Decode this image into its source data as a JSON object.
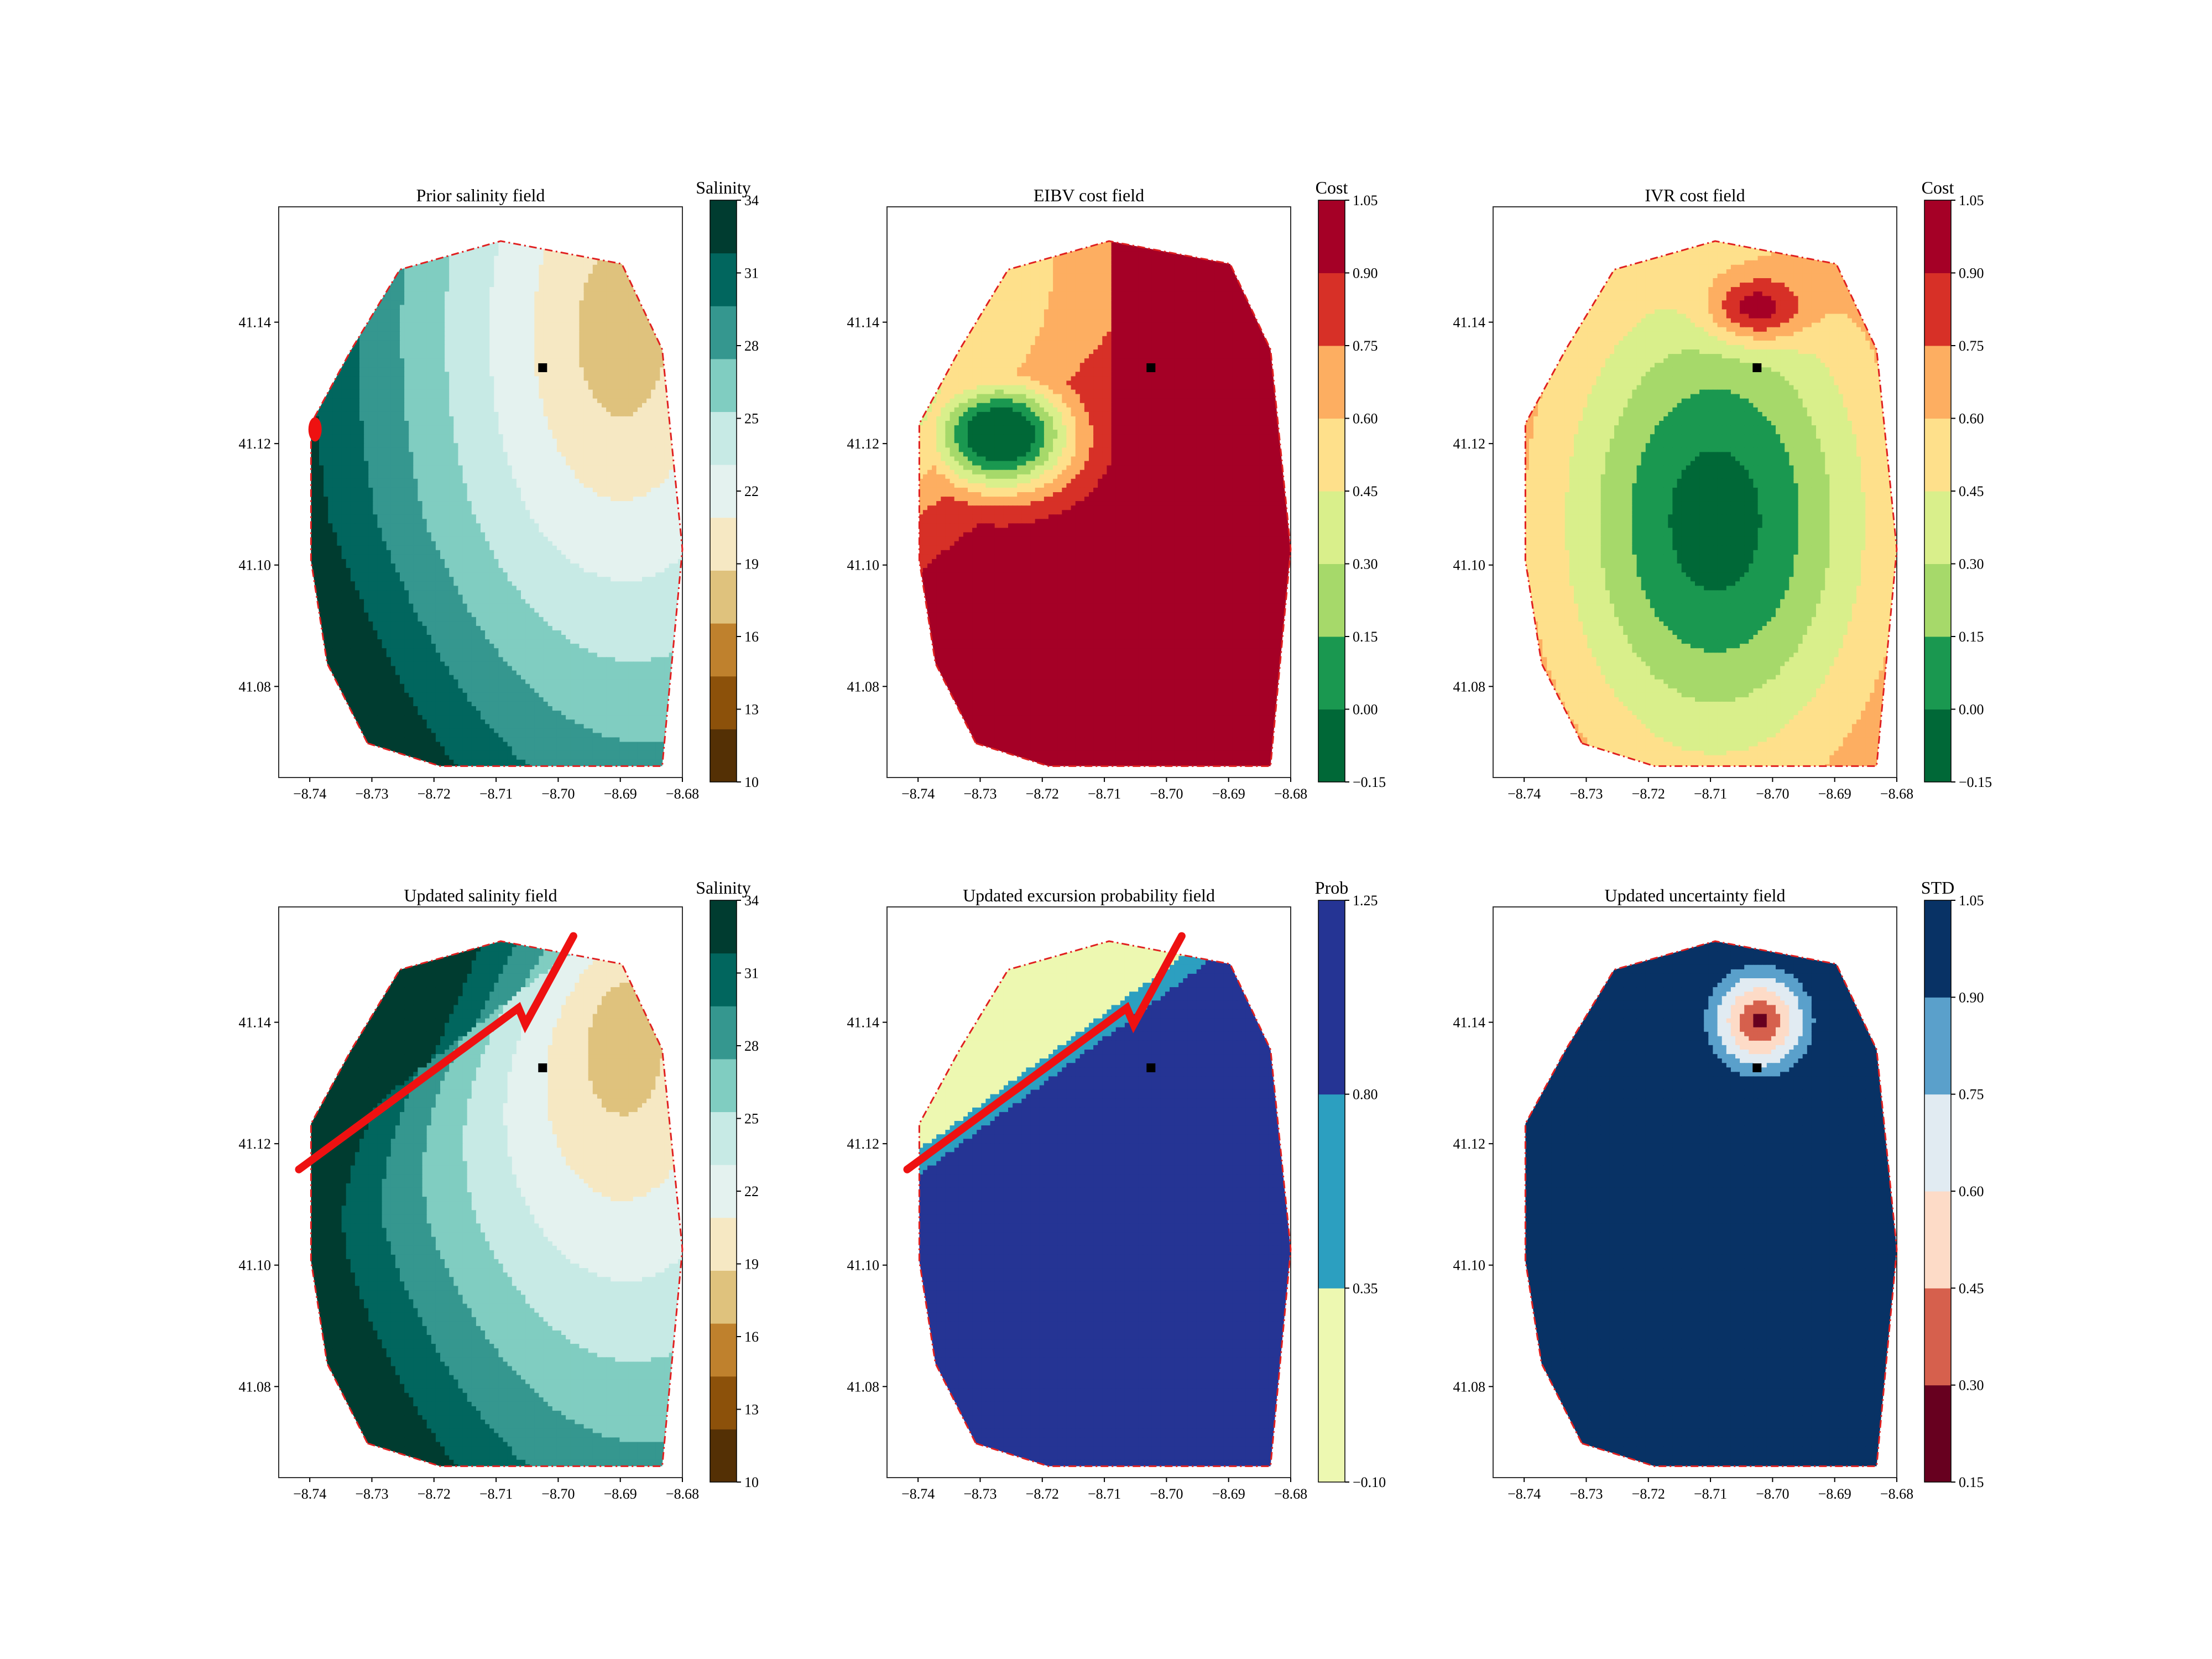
{
  "chart_data": [
    {
      "type": "heatmap",
      "title": "Prior salinity field",
      "xlim": [
        -8.745,
        -8.68
      ],
      "ylim": [
        41.065,
        41.159
      ],
      "xticks": [
        "-8.74",
        "-8.73",
        "-8.72",
        "-8.71",
        "-8.70",
        "-8.69",
        "-8.68"
      ],
      "yticks": [
        "41.08",
        "41.10",
        "41.12",
        "41.14"
      ],
      "colorbar": {
        "label": "Salinity",
        "ticks": [
          "10",
          "13",
          "16",
          "19",
          "22",
          "25",
          "28",
          "31",
          "34"
        ],
        "levels": [
          10,
          11.5,
          13,
          14.5,
          16,
          17.5,
          19,
          20.5,
          22,
          23.5,
          25,
          26.5,
          28,
          29.5,
          31,
          32.5,
          34,
          35.5
        ],
        "colors": [
          "#543005",
          "#8c510a",
          "#bf812d",
          "#dfc27d",
          "#f6e8c3",
          "#e4f2ef",
          "#c7eae5",
          "#80cdc1",
          "#35978f",
          "#01665e",
          "#003c30"
        ]
      },
      "marker": {
        "lon": -8.7025,
        "lat": 41.1325
      },
      "path": "red blob at west boundary"
    },
    {
      "type": "heatmap",
      "title": "EIBV cost field",
      "xlim": [
        -8.745,
        -8.68
      ],
      "ylim": [
        41.065,
        41.159
      ],
      "xticks": [
        "-8.74",
        "-8.73",
        "-8.72",
        "-8.71",
        "-8.70",
        "-8.69",
        "-8.68"
      ],
      "yticks": [
        "41.08",
        "41.10",
        "41.12",
        "41.14"
      ],
      "colorbar": {
        "label": "Cost",
        "ticks": [
          "−0.15",
          "0.00",
          "0.15",
          "0.30",
          "0.45",
          "0.60",
          "0.75",
          "0.90",
          "1.05"
        ],
        "levels": [
          -0.15,
          0,
          0.15,
          0.3,
          0.45,
          0.6,
          0.75,
          0.9,
          1.05
        ],
        "colors": [
          "#006837",
          "#1a9850",
          "#a6d96a",
          "#d9ef8b",
          "#fee08b",
          "#fdae61",
          "#d73027",
          "#a50026"
        ]
      },
      "marker": {
        "lon": -8.7025,
        "lat": 41.1325
      }
    },
    {
      "type": "heatmap",
      "title": "IVR cost field",
      "xlim": [
        -8.745,
        -8.68
      ],
      "ylim": [
        41.065,
        41.159
      ],
      "xticks": [
        "-8.74",
        "-8.73",
        "-8.72",
        "-8.71",
        "-8.70",
        "-8.69",
        "-8.68"
      ],
      "yticks": [
        "41.08",
        "41.10",
        "41.12",
        "41.14"
      ],
      "colorbar": {
        "label": "Cost",
        "ticks": [
          "−0.15",
          "0.00",
          "0.15",
          "0.30",
          "0.45",
          "0.60",
          "0.75",
          "0.90",
          "1.05"
        ],
        "levels": [
          -0.15,
          0,
          0.15,
          0.3,
          0.45,
          0.6,
          0.75,
          0.9,
          1.05
        ],
        "colors": [
          "#006837",
          "#1a9850",
          "#a6d96a",
          "#d9ef8b",
          "#fee08b",
          "#fdae61",
          "#d73027",
          "#a50026"
        ]
      },
      "marker": {
        "lon": -8.7025,
        "lat": 41.1325
      }
    },
    {
      "type": "heatmap",
      "title": "Updated salinity field",
      "xlim": [
        -8.745,
        -8.68
      ],
      "ylim": [
        41.065,
        41.159
      ],
      "xticks": [
        "-8.74",
        "-8.73",
        "-8.72",
        "-8.71",
        "-8.70",
        "-8.69",
        "-8.68"
      ],
      "yticks": [
        "41.08",
        "41.10",
        "41.12",
        "41.14"
      ],
      "colorbar": {
        "label": "Salinity",
        "ticks": [
          "10",
          "13",
          "16",
          "19",
          "22",
          "25",
          "28",
          "31",
          "34"
        ],
        "levels": [
          10,
          11.5,
          13,
          14.5,
          16,
          17.5,
          19,
          20.5,
          22,
          23.5,
          25,
          26.5,
          28,
          29.5,
          31,
          32.5,
          34,
          35.5
        ],
        "colors": [
          "#543005",
          "#8c510a",
          "#bf812d",
          "#dfc27d",
          "#f6e8c3",
          "#e4f2ef",
          "#c7eae5",
          "#80cdc1",
          "#35978f",
          "#01665e",
          "#003c30"
        ]
      },
      "marker": {
        "lon": -8.7025,
        "lat": 41.1325
      }
    },
    {
      "type": "heatmap",
      "title": "Updated excursion probability field",
      "xlim": [
        -8.745,
        -8.68
      ],
      "ylim": [
        41.065,
        41.159
      ],
      "xticks": [
        "-8.74",
        "-8.73",
        "-8.72",
        "-8.71",
        "-8.70",
        "-8.69",
        "-8.68"
      ],
      "yticks": [
        "41.08",
        "41.10",
        "41.12",
        "41.14"
      ],
      "colorbar": {
        "label": "Prob",
        "ticks": [
          "−0.10",
          "0.35",
          "0.80",
          "1.25"
        ],
        "levels": [
          -0.1,
          0.35,
          0.8,
          1.25
        ],
        "colors": [
          "#edf8b1",
          "#2c9fc0",
          "#253494"
        ]
      },
      "marker": {
        "lon": -8.7025,
        "lat": 41.1325
      }
    },
    {
      "type": "heatmap",
      "title": "Updated uncertainty field",
      "xlim": [
        -8.745,
        -8.68
      ],
      "ylim": [
        41.065,
        41.159
      ],
      "xticks": [
        "-8.74",
        "-8.73",
        "-8.72",
        "-8.71",
        "-8.70",
        "-8.69",
        "-8.68"
      ],
      "yticks": [
        "41.08",
        "41.10",
        "41.12",
        "41.14"
      ],
      "colorbar": {
        "label": "STD",
        "ticks": [
          "0.15",
          "0.30",
          "0.45",
          "0.60",
          "0.75",
          "0.90",
          "1.05"
        ],
        "levels": [
          0.15,
          0.3,
          0.45,
          0.6,
          0.75,
          0.9,
          1.05
        ],
        "colors": [
          "#67001f",
          "#d6604d",
          "#fddbc7",
          "#e1ebf2",
          "#5aa0cb",
          "#083265"
        ]
      },
      "marker": {
        "lon": -8.7025,
        "lat": 41.1325
      }
    }
  ],
  "colors": {
    "boundary": "#e02020",
    "path": "#ee1111",
    "contour_line": "#6f6f6f",
    "marker": "#000000"
  }
}
